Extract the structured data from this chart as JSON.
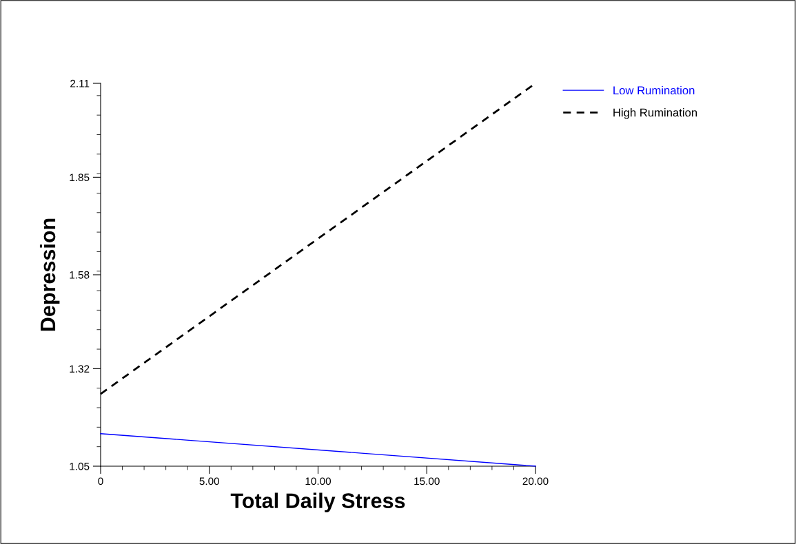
{
  "chart_data": {
    "type": "line",
    "xlabel": "Total Daily Stress",
    "ylabel": "Depression",
    "xlim": [
      0,
      20
    ],
    "ylim": [
      1.05,
      2.11
    ],
    "xticks": [
      0,
      {
        "value": 5,
        "label": "5.00"
      },
      {
        "value": 10,
        "label": "10.00"
      },
      {
        "value": 15,
        "label": "15.00"
      },
      {
        "value": 20,
        "label": "20.00"
      }
    ],
    "yticks": [
      1.05,
      1.32,
      1.58,
      1.85,
      2.11
    ],
    "x": [
      0,
      20
    ],
    "series": [
      {
        "name": "Low Rumination",
        "color": "#0000ff",
        "values": [
          1.14,
          1.05
        ],
        "line_style": "solid"
      },
      {
        "name": "High Rumination",
        "color": "#000000",
        "values": [
          1.25,
          2.11
        ],
        "line_style": "dashed"
      }
    ],
    "legend": "top right",
    "grid": false
  }
}
